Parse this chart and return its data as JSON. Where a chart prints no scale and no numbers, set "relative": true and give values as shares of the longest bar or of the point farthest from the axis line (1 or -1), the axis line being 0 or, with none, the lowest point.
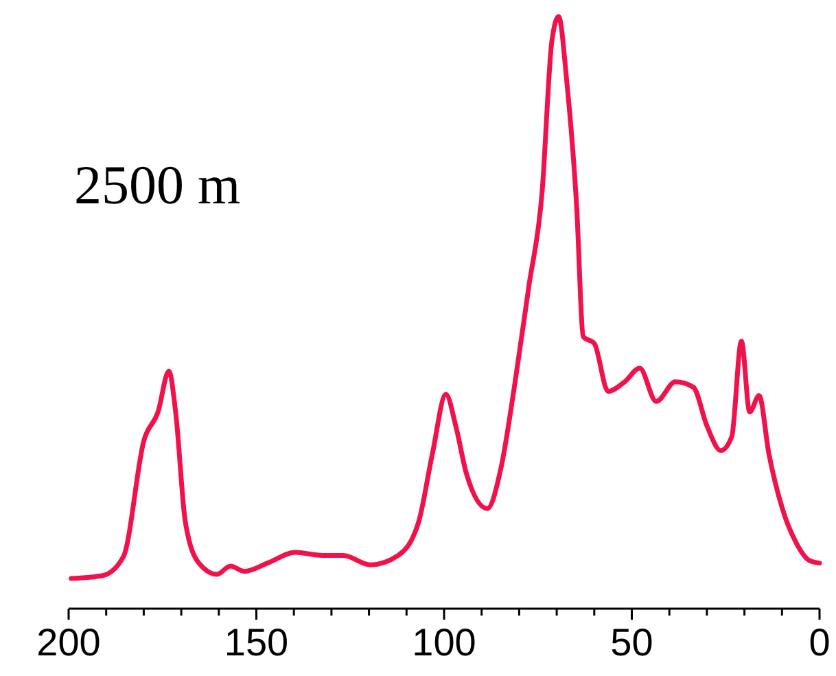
{
  "chart_data": {
    "type": "line",
    "relative": true,
    "annotations": [
      "2500 m"
    ],
    "xlim": [
      200,
      0
    ],
    "xticks": [
      200,
      {
        "value": 190,
        "label": null
      },
      {
        "value": 180,
        "label": null
      },
      {
        "value": 170,
        "label": null
      },
      {
        "value": 160,
        "label": null
      },
      150,
      {
        "value": 140,
        "label": null
      },
      {
        "value": 130,
        "label": null
      },
      {
        "value": 120,
        "label": null
      },
      {
        "value": 110,
        "label": null
      },
      100,
      {
        "value": 90,
        "label": null
      },
      {
        "value": 80,
        "label": null
      },
      {
        "value": 70,
        "label": null
      },
      {
        "value": 60,
        "label": null
      },
      50,
      {
        "value": 40,
        "label": null
      },
      {
        "value": 30,
        "label": null
      },
      {
        "value": 20,
        "label": null
      },
      {
        "value": 10,
        "label": null
      },
      0
    ],
    "grid": false,
    "marker": "none",
    "line_style": "solid",
    "tick_labels": "x",
    "series": [
      {
        "color": "#f0124a",
        "x": [
          199.3,
          190.9,
          185.4,
          179.9,
          176.2,
          173.3,
          171.5,
          168.9,
          165.3,
          160.5,
          156.9,
          153.2,
          147,
          139.7,
          132.4,
          126.9,
          119.6,
          112.2,
          106.8,
          103.1,
          99.5,
          96.9,
          94,
          88.5,
          84.8,
          81.2,
          77.5,
          73.9,
          71.3,
          69.5,
          67.3,
          64.7,
          62.9,
          60,
          56.3,
          51.9,
          47.9,
          43.5,
          38.4,
          33.6,
          30,
          26.3,
          23.4,
          20.8,
          18.6,
          16.1,
          13.5,
          9.9,
          6.2,
          2.6,
          0
        ],
        "values": [
          0.051,
          0.056,
          0.088,
          0.285,
          0.332,
          0.401,
          0.332,
          0.146,
          0.077,
          0.058,
          0.072,
          0.063,
          0.077,
          0.095,
          0.09,
          0.09,
          0.074,
          0.09,
          0.146,
          0.262,
          0.362,
          0.309,
          0.227,
          0.169,
          0.239,
          0.378,
          0.541,
          0.703,
          0.958,
          1,
          0.889,
          0.68,
          0.459,
          0.448,
          0.367,
          0.383,
          0.406,
          0.35,
          0.383,
          0.374,
          0.309,
          0.267,
          0.29,
          0.452,
          0.332,
          0.36,
          0.262,
          0.169,
          0.111,
          0.081,
          0.077
        ]
      }
    ]
  }
}
